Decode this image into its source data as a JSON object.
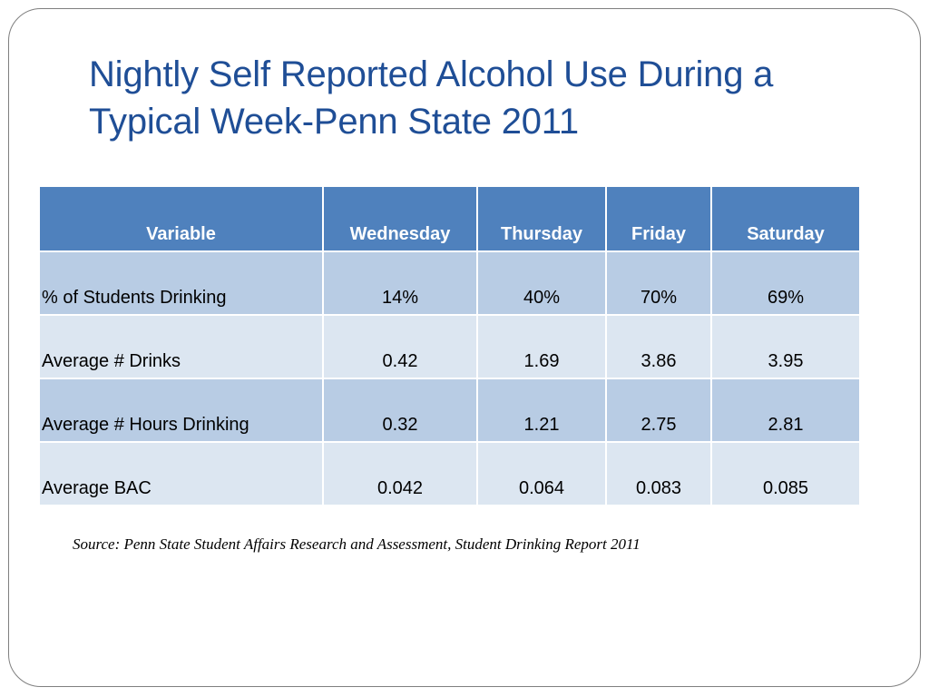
{
  "slide": {
    "title": "Nightly Self Reported Alcohol Use During a Typical Week-Penn State 2011",
    "source": "Source: Penn State Student Affairs Research and Assessment, Student Drinking Report 2011"
  },
  "table": {
    "headers": [
      "Variable",
      "Wednesday",
      "Thursday",
      "Friday",
      "Saturday"
    ],
    "rows": [
      [
        "% of Students Drinking",
        "14%",
        "40%",
        "70%",
        "69%"
      ],
      [
        "Average # Drinks",
        "0.42",
        "1.69",
        "3.86",
        "3.95"
      ],
      [
        "Average # Hours Drinking",
        "0.32",
        "1.21",
        "2.75",
        "2.81"
      ],
      [
        "Average BAC",
        "0.042",
        "0.064",
        "0.083",
        "0.085"
      ]
    ]
  },
  "colors": {
    "title": "#1f4e96",
    "header_fill": "#4f81bd",
    "row_fill_dark": "#b8cce4",
    "row_fill_light": "#dce6f1"
  }
}
